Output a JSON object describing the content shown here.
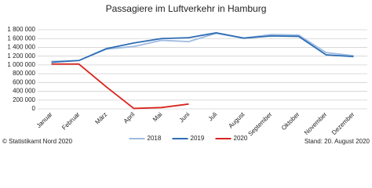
{
  "chart_data": {
    "type": "line",
    "title": "Passagiere im Luftverkehr in Hamburg",
    "categories": [
      "Januar",
      "Februar",
      "März",
      "April",
      "Mai",
      "Juni",
      "Juli",
      "August",
      "September",
      "Oktober",
      "November",
      "Dezember"
    ],
    "series": [
      {
        "name": "2018",
        "color": "#9dbbe0",
        "values": [
          1080000,
          1100000,
          1360000,
          1420000,
          1560000,
          1530000,
          1720000,
          1610000,
          1690000,
          1680000,
          1280000,
          1210000
        ]
      },
      {
        "name": "2019",
        "color": "#2e6db4",
        "values": [
          1060000,
          1100000,
          1370000,
          1500000,
          1600000,
          1620000,
          1730000,
          1610000,
          1660000,
          1650000,
          1230000,
          1190000
        ]
      },
      {
        "name": "2020",
        "color": "#d9251d",
        "values": [
          1020000,
          1020000,
          500000,
          10000,
          30000,
          110000,
          null,
          null,
          null,
          null,
          null,
          null
        ]
      }
    ],
    "ylim": [
      0,
      1800000
    ],
    "yticks": [
      0,
      {
        "value": 200000,
        "label": "200 000"
      },
      {
        "value": 400000,
        "label": "400 000"
      },
      {
        "value": 600000,
        "label": "600 000"
      },
      {
        "value": 800000,
        "label": "800 000"
      },
      {
        "value": 1000000,
        "label": "1 000 000"
      },
      {
        "value": 1200000,
        "label": "1 200 000"
      },
      {
        "value": 1400000,
        "label": "1 400 000"
      },
      {
        "value": 1600000,
        "label": "1 600 000"
      },
      {
        "value": 1800000,
        "label": "1 800 000"
      }
    ],
    "grid": true,
    "legend": "bottom",
    "footnote_left": "© Statistikamt Nord 2020",
    "footnote_right": "Stand: 20. August 2020"
  }
}
